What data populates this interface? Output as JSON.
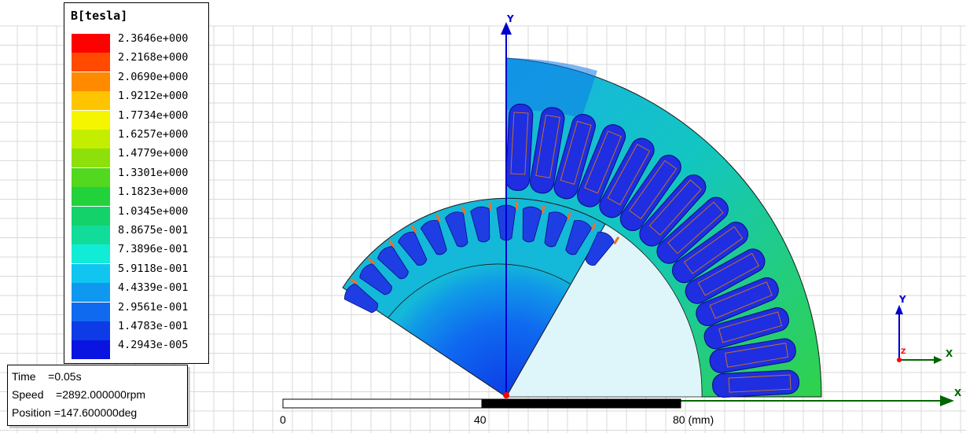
{
  "legend": {
    "title": "B[tesla]",
    "levels": [
      {
        "label": "2.3646e+000",
        "color": "#ff0000"
      },
      {
        "label": "2.2168e+000",
        "color": "#ff4a00"
      },
      {
        "label": "2.0690e+000",
        "color": "#ff8a00"
      },
      {
        "label": "1.9212e+000",
        "color": "#ffc400"
      },
      {
        "label": "1.7734e+000",
        "color": "#f5f500"
      },
      {
        "label": "1.6257e+000",
        "color": "#c4ee00"
      },
      {
        "label": "1.4779e+000",
        "color": "#8ee00a"
      },
      {
        "label": "1.3301e+000",
        "color": "#52d81e"
      },
      {
        "label": "1.1823e+000",
        "color": "#22d23a"
      },
      {
        "label": "1.0345e+000",
        "color": "#14d26a"
      },
      {
        "label": "8.8675e-001",
        "color": "#12dc9a"
      },
      {
        "label": "7.3896e-001",
        "color": "#10ecd6"
      },
      {
        "label": "5.9118e-001",
        "color": "#10c6f0"
      },
      {
        "label": "4.4339e-001",
        "color": "#0f98f0"
      },
      {
        "label": "2.9561e-001",
        "color": "#0f6af0"
      },
      {
        "label": "1.4783e-001",
        "color": "#0d3ce6"
      },
      {
        "label": "4.2943e-005",
        "color": "#0a14e0"
      }
    ]
  },
  "info": {
    "time": "Time    =0.05s",
    "speed": "Speed    =2892.000000rpm",
    "position": "Position =147.600000deg"
  },
  "scale": {
    "ticks": [
      "0",
      "40",
      "80 (mm)"
    ]
  },
  "axes": {
    "main_y": "Y",
    "main_x": "X",
    "triad_y": "Y",
    "triad_x": "X",
    "triad_z": "Z"
  },
  "colors": {
    "axis_blue": "#0000cc",
    "axis_green": "#006600",
    "grid": "#d9d9d9"
  }
}
